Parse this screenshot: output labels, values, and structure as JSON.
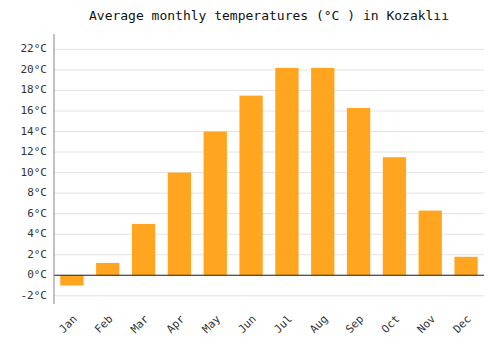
{
  "chart_data": {
    "type": "bar",
    "title": "Average monthly temperatures (°C ) in Kozaklıı",
    "categories": [
      "Jan",
      "Feb",
      "Mar",
      "Apr",
      "May",
      "Jun",
      "Jul",
      "Aug",
      "Sep",
      "Oct",
      "Nov",
      "Dec"
    ],
    "values": [
      -1.0,
      1.2,
      5.0,
      10.0,
      14.0,
      17.5,
      20.2,
      20.2,
      16.3,
      11.5,
      6.3,
      1.8
    ],
    "color": "#FFA520",
    "ylim": [
      -2.8,
      23.5
    ],
    "yticks": [
      {
        "value": -2,
        "label": "-2°C"
      },
      {
        "value": 0,
        "label": "0°C"
      },
      {
        "value": 2,
        "label": "2°C"
      },
      {
        "value": 4,
        "label": "4°C"
      },
      {
        "value": 6,
        "label": "6°C"
      },
      {
        "value": 8,
        "label": "8°C"
      },
      {
        "value": 10,
        "label": "10°C"
      },
      {
        "value": 12,
        "label": "12°C"
      },
      {
        "value": 14,
        "label": "14°C"
      },
      {
        "value": 16,
        "label": "16°C"
      },
      {
        "value": 18,
        "label": "18°C"
      },
      {
        "value": 20,
        "label": "20°C"
      },
      {
        "value": 22,
        "label": "22°C"
      }
    ],
    "grid": true
  }
}
